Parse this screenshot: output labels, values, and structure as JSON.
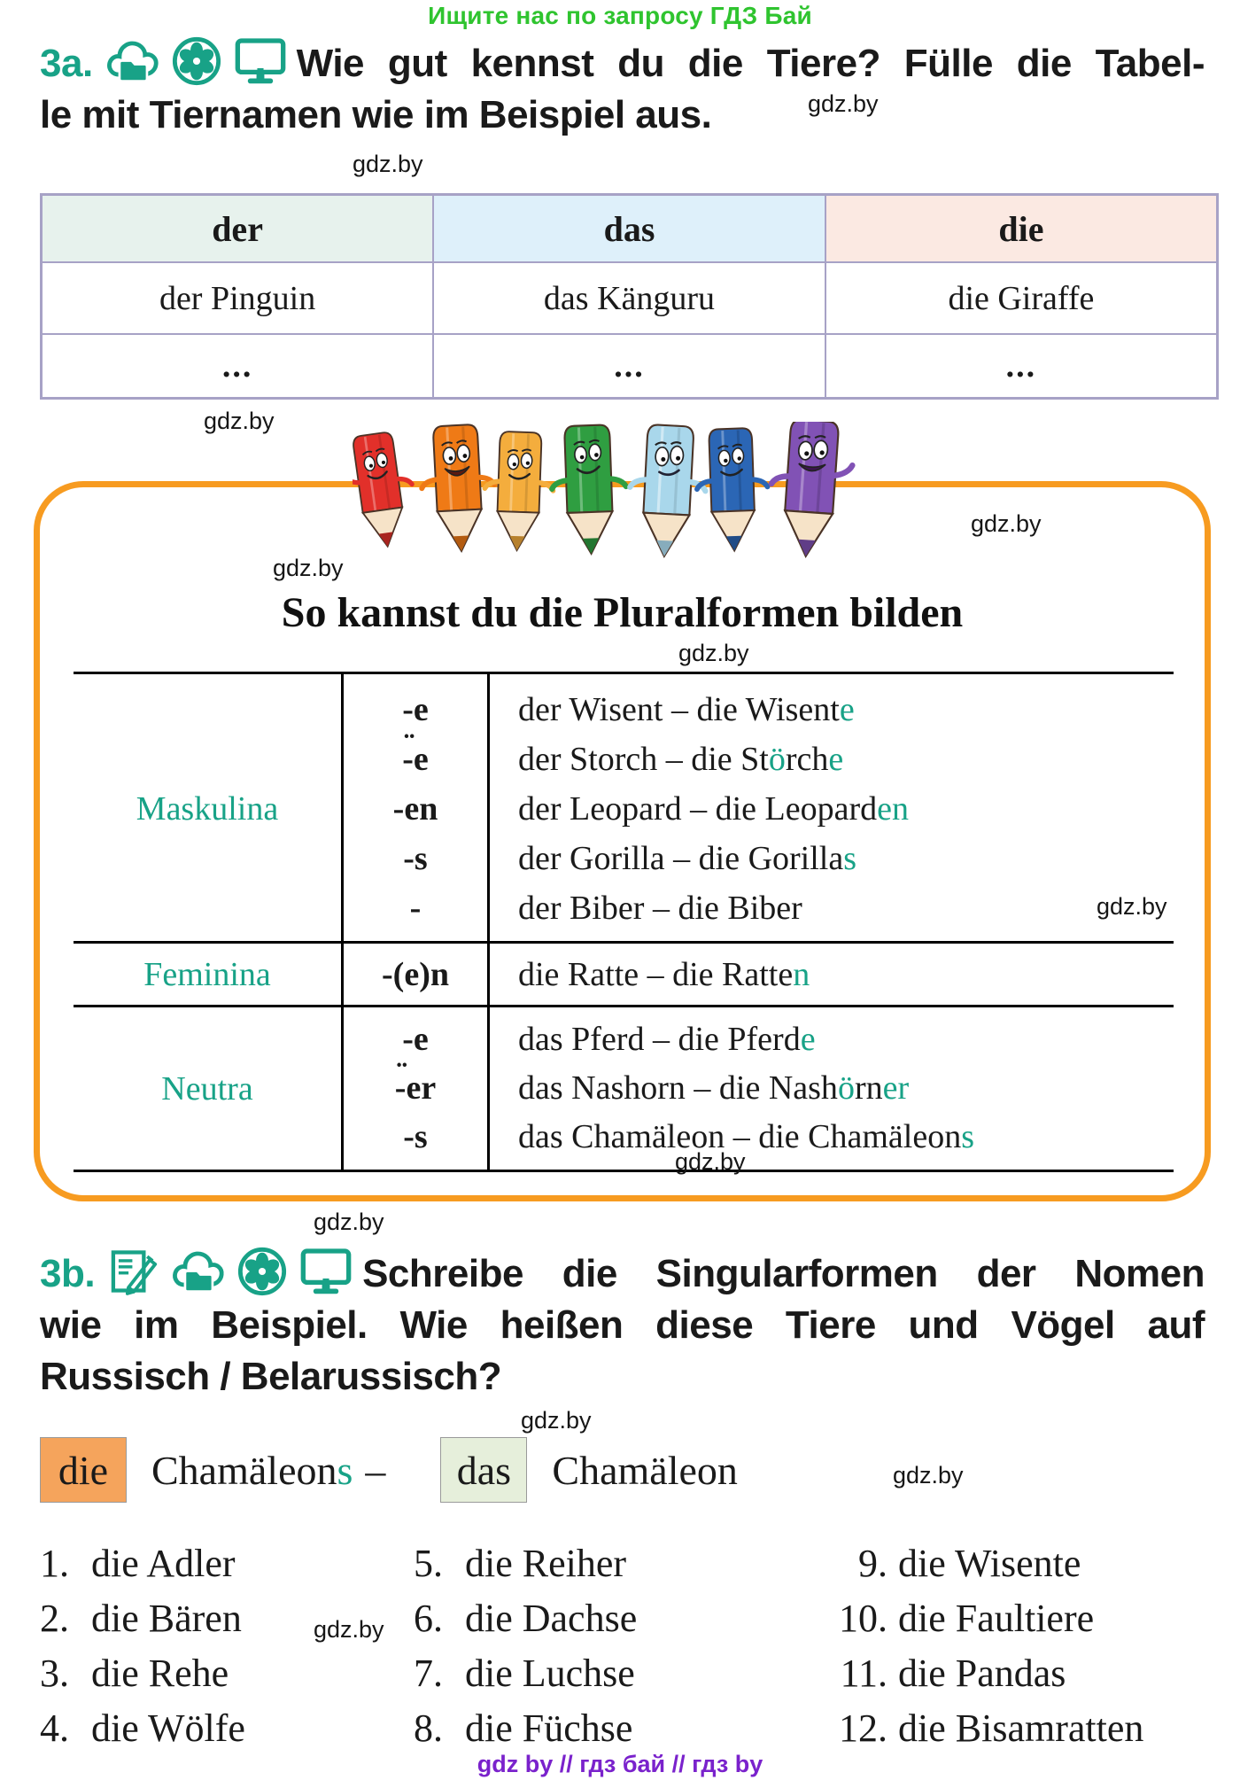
{
  "banner": {
    "text": "Ищите нас по запросу ГДЗ Бай",
    "color": "#2fc42f"
  },
  "watermark_text": "gdz.by",
  "footer": {
    "text": "gdz by  //  гдз бай  //  гдз by",
    "color": "#7a22cc"
  },
  "accent_teal": "#18A287",
  "task3a": {
    "number": "3a.",
    "icons": [
      "cloud-folder-icon",
      "flower-icon",
      "monitor-icon"
    ],
    "line1": "Wie gut kennst du die Tiere? Fülle die Tabel-",
    "line2": "le mit Tiernamen wie im Beispiel aus."
  },
  "article_table": {
    "headers": [
      {
        "label": "der",
        "bg": "#E7F2ED"
      },
      {
        "label": "das",
        "bg": "#DEF0FA"
      },
      {
        "label": "die",
        "bg": "#FBE9E2"
      }
    ],
    "row1": [
      "der Pinguin",
      "das Känguru",
      "die Giraffe"
    ],
    "row2": [
      "...",
      "...",
      "..."
    ]
  },
  "pencils": {
    "colors": [
      "#e2302a",
      "#ef7a16",
      "#f4ad3d",
      "#2f9e41",
      "#a9d7eb",
      "#2b66b5",
      "#8152b5"
    ],
    "wood": "#f6e3c8"
  },
  "plural_box": {
    "title": "So kannst du die Pluralformen bilden",
    "groups": [
      {
        "label": "Maskulina",
        "rows": [
          {
            "u": "",
            "end": "-e",
            "seg": [
              {
                "t": "der Wisent – die Wisent"
              },
              {
                "t": "e",
                "hl": true
              }
            ]
          },
          {
            "u": "¨",
            "end": "-e",
            "seg": [
              {
                "t": "der Storch – die St"
              },
              {
                "t": "ö",
                "hl": true
              },
              {
                "t": "rch"
              },
              {
                "t": "e",
                "hl": true
              }
            ]
          },
          {
            "u": "",
            "end": "-en",
            "seg": [
              {
                "t": "der Leopard – die Leopard"
              },
              {
                "t": "en",
                "hl": true
              }
            ]
          },
          {
            "u": "",
            "end": "-s",
            "seg": [
              {
                "t": "der Gorilla – die Gorilla"
              },
              {
                "t": "s",
                "hl": true
              }
            ]
          },
          {
            "u": "",
            "end": "-",
            "seg": [
              {
                "t": "der Biber – die Biber"
              }
            ]
          }
        ]
      },
      {
        "label": "Feminina",
        "rows": [
          {
            "u": "",
            "end": "-(e)n",
            "seg": [
              {
                "t": "die Ratte – die Ratte"
              },
              {
                "t": "n",
                "hl": true
              }
            ]
          }
        ]
      },
      {
        "label": "Neutra",
        "rows": [
          {
            "u": "",
            "end": "-e",
            "seg": [
              {
                "t": "das Pferd – die Pferd"
              },
              {
                "t": "e",
                "hl": true
              }
            ]
          },
          {
            "u": "¨",
            "end": "-er",
            "seg": [
              {
                "t": "das Nashorn – die Nash"
              },
              {
                "t": "ö",
                "hl": true
              },
              {
                "t": "rn"
              },
              {
                "t": "er",
                "hl": true
              }
            ]
          },
          {
            "u": "",
            "end": "-s",
            "seg": [
              {
                "t": "das Chamäleon – die Chamäleon"
              },
              {
                "t": "s",
                "hl": true
              }
            ]
          }
        ]
      }
    ]
  },
  "task3b": {
    "number": "3b.",
    "icons": [
      "pen-paper-icon",
      "cloud-folder-icon",
      "flower-icon",
      "monitor-icon"
    ],
    "line1": "Schreibe die Singularformen der Nomen",
    "line2": "wie im Beispiel. Wie heißen diese Tiere und Vögel auf",
    "line3": "Russisch / Belarussisch?"
  },
  "example": {
    "article_plural": "die",
    "plural_stem": "Chamäleon",
    "plural_ending": "s",
    "dash": "–",
    "article_singular": "das",
    "singular": "Chamäleon",
    "plural_box_bg": "#F5A45C",
    "singular_box_bg": "#E6EFDB"
  },
  "animal_list": {
    "col1": [
      {
        "n": "1.",
        "t": "die Adler"
      },
      {
        "n": "2.",
        "t": "die Bären"
      },
      {
        "n": "3.",
        "t": "die Rehe"
      },
      {
        "n": "4.",
        "t": "die Wölfe"
      }
    ],
    "col2": [
      {
        "n": "5.",
        "t": "die Reiher"
      },
      {
        "n": "6.",
        "t": "die Dachse"
      },
      {
        "n": "7.",
        "t": "die Luchse"
      },
      {
        "n": "8.",
        "t": "die Füchse"
      }
    ],
    "col3": [
      {
        "n": "9.",
        "t": "die Wisente"
      },
      {
        "n": "10.",
        "t": "die Faultiere"
      },
      {
        "n": "11.",
        "t": "die Pandas"
      },
      {
        "n": "12.",
        "t": "die Bisamratten"
      }
    ]
  }
}
